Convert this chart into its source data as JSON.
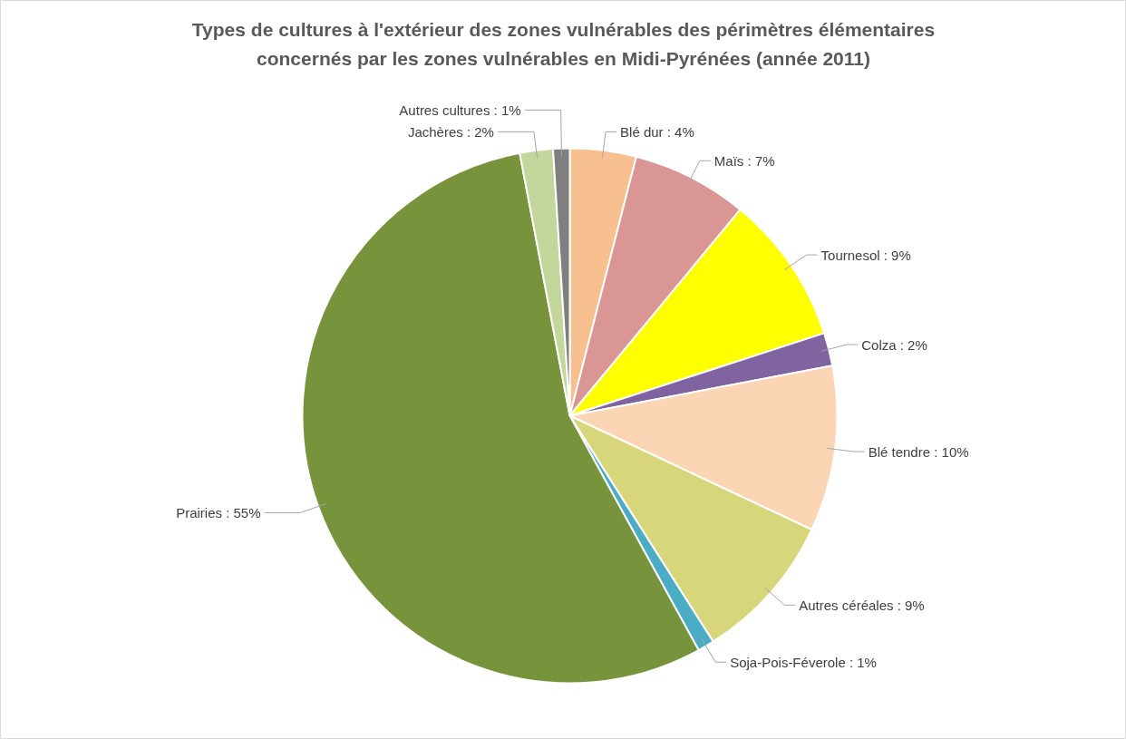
{
  "chart_data": {
    "type": "pie",
    "title": "Types de cultures à l'extérieur des zones vulnérables des périmètres élémentaires\nconcernés par les zones vulnérables en Midi-Pyrénées (année 2011)",
    "categories": [
      "Blé dur",
      "Maïs",
      "Tournesol",
      "Colza",
      "Blé tendre",
      "Autres céréales",
      "Soja-Pois-Féverole",
      "Prairies",
      "Jachères",
      "Autres cultures"
    ],
    "values": [
      4,
      7,
      9,
      2,
      10,
      9,
      1,
      55,
      2,
      1
    ],
    "colors": [
      "#f9c08f",
      "#d99694",
      "#ffff00",
      "#8064a2",
      "#fcd5b5",
      "#d7d67a",
      "#4bacc6",
      "#77933c",
      "#c3d69b",
      "#7f7f7f"
    ],
    "value_labels": [
      "4%",
      "7%",
      "9%",
      "2%",
      "10%",
      "9%",
      "1%",
      "55%",
      "2%",
      "1%"
    ],
    "legend": false
  }
}
